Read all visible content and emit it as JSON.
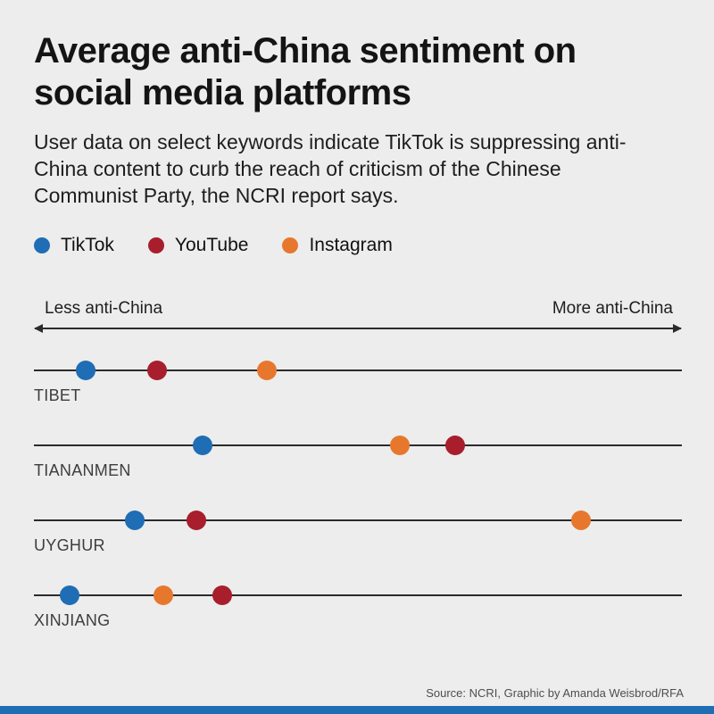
{
  "header": {
    "title": "Average anti-China sentiment on social media platforms",
    "subtitle": "User data on select keywords indicate TikTok is suppressing anti-China content to curb the reach of criticism of the Chinese Communist Party, the NCRI report says."
  },
  "legend": [
    {
      "label": "TikTok",
      "color": "#1f6db4"
    },
    {
      "label": "YouTube",
      "color": "#a81e2c"
    },
    {
      "label": "Instagram",
      "color": "#e8772e"
    }
  ],
  "axis": {
    "left_label": "Less anti-China",
    "right_label": "More anti-China"
  },
  "footer": {
    "source": "Source: NCRI, Graphic by Amanda Weisbrod/RFA",
    "bar_color": "#1f6db4"
  },
  "chart_data": {
    "type": "scatter",
    "variant": "horizontal-dot-plot",
    "title": "Average anti-China sentiment on social media platforms",
    "categories": [
      "TIBET",
      "TIANANMEN",
      "UYGHUR",
      "XINJIANG"
    ],
    "series": [
      {
        "name": "TikTok",
        "color": "#1f6db4",
        "values": [
          8,
          26,
          15.5,
          5.5
        ]
      },
      {
        "name": "YouTube",
        "color": "#a81e2c",
        "values": [
          19,
          65,
          25,
          29
        ]
      },
      {
        "name": "Instagram",
        "color": "#e8772e",
        "values": [
          36,
          56.5,
          84.5,
          20
        ]
      }
    ],
    "xlabel_left": "Less anti-China",
    "xlabel_right": "More anti-China",
    "xlim": [
      0,
      100
    ],
    "x_units": "relative position along axis (no numeric ticks shown)",
    "grid": false,
    "legend_position": "top"
  }
}
